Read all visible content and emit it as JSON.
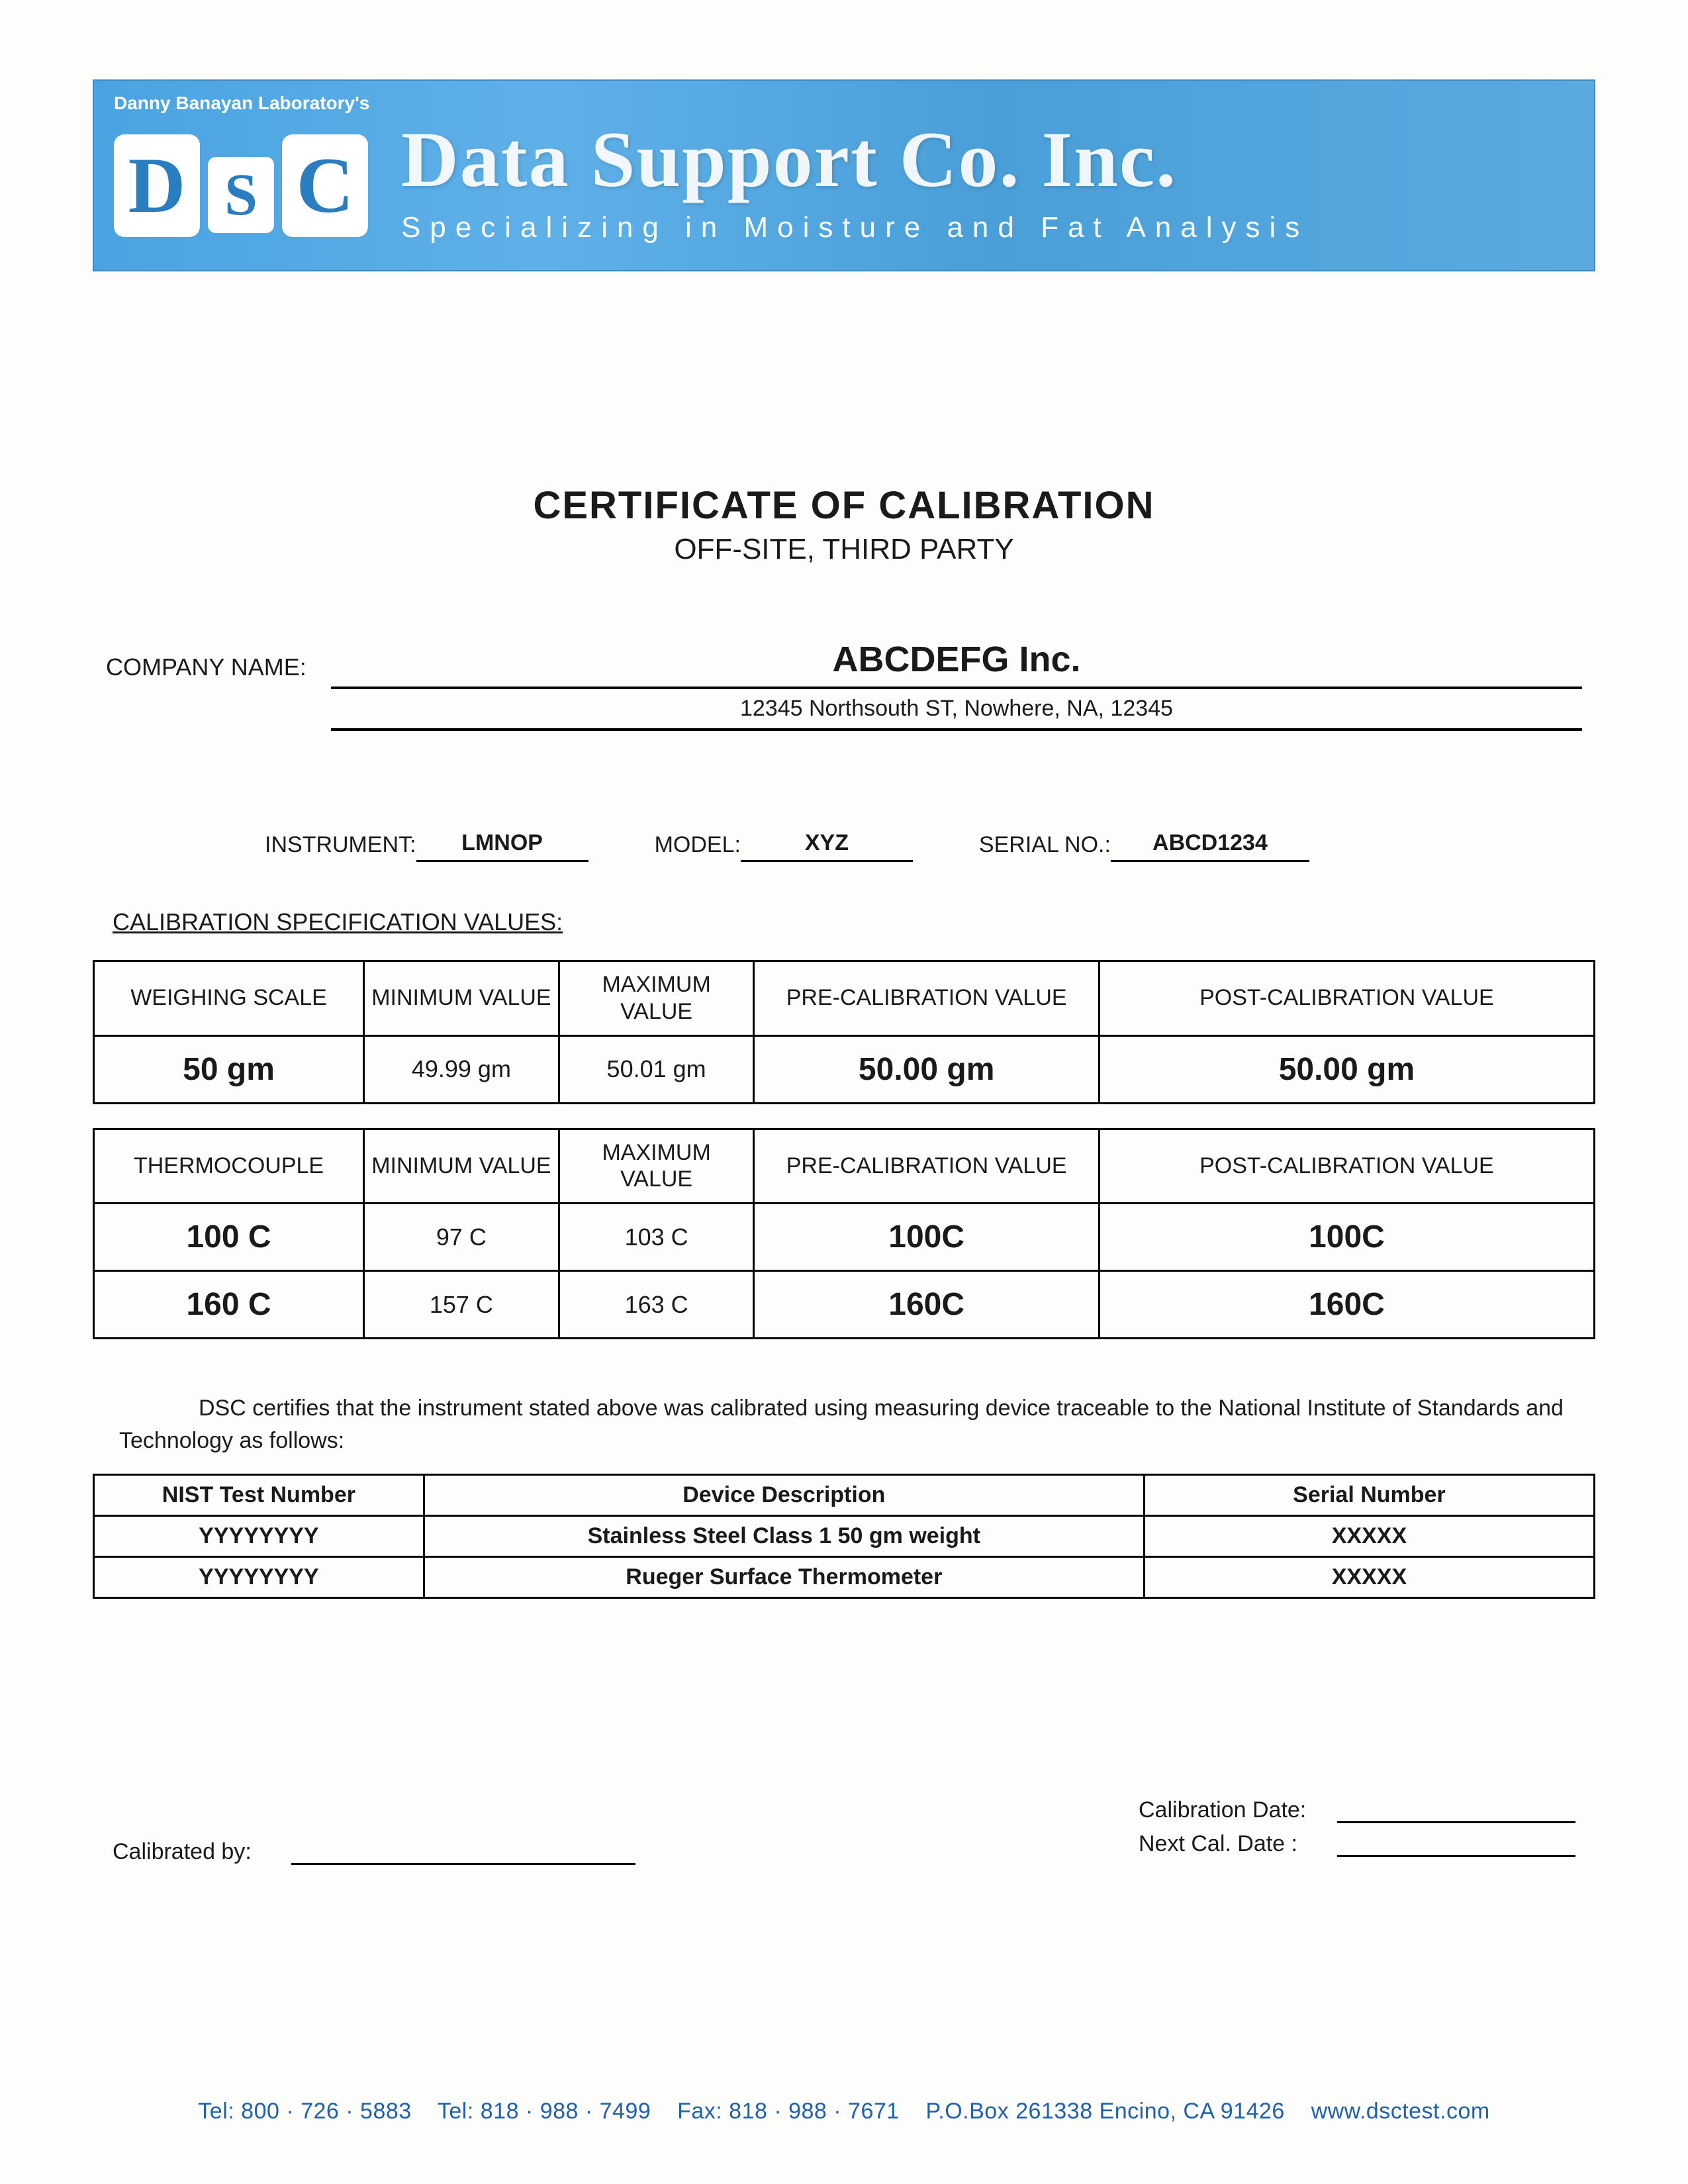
{
  "banner": {
    "lab_line": "Danny Banayan Laboratory's",
    "logo": {
      "d": "D",
      "s": "S",
      "c": "C"
    },
    "title": "Data Support Co. Inc.",
    "subtitle": "Specializing in Moisture and Fat Analysis"
  },
  "cert": {
    "title": "CERTIFICATE OF CALIBRATION",
    "subtitle": "OFF-SITE, THIRD PARTY"
  },
  "company": {
    "label": "COMPANY NAME:",
    "name": "ABCDEFG Inc.",
    "address": "12345 Northsouth ST, Nowhere, NA, 12345"
  },
  "instrument": {
    "inst_label": "INSTRUMENT:",
    "inst_value": "LMNOP",
    "model_label": "MODEL:",
    "model_value": "XYZ",
    "serial_label": "SERIAL NO.:",
    "serial_value": "ABCD1234"
  },
  "spec_label": "CALIBRATION SPECIFICATION VALUES:",
  "table_headers": {
    "min": "MINIMUM VALUE",
    "max": "MAXIMUM VALUE",
    "pre": "PRE-CALIBRATION VALUE",
    "post": "POST-CALIBRATION VALUE"
  },
  "weighing": {
    "label": "WEIGHING SCALE",
    "rows": [
      {
        "nominal": "50 gm",
        "min": "49.99 gm",
        "max": "50.01 gm",
        "pre": "50.00 gm",
        "post": "50.00 gm"
      }
    ]
  },
  "thermocouple": {
    "label": "THERMOCOUPLE",
    "rows": [
      {
        "nominal": "100 C",
        "min": "97 C",
        "max": "103 C",
        "pre": "100C",
        "post": "100C"
      },
      {
        "nominal": "160 C",
        "min": "157 C",
        "max": "163 C",
        "pre": "160C",
        "post": "160C"
      }
    ]
  },
  "statement": "DSC certifies that the instrument stated above was calibrated using measuring device traceable to the National Institute of Standards and Technology as follows:",
  "nist": {
    "headers": {
      "num": "NIST Test Number",
      "desc": "Device Description",
      "serial": "Serial Number"
    },
    "rows": [
      {
        "num": "YYYYYYYY",
        "desc": "Stainless Steel Class 1 50 gm weight",
        "serial": "XXXXX"
      },
      {
        "num": "YYYYYYYY",
        "desc": "Rueger Surface Thermometer",
        "serial": "XXXXX"
      }
    ]
  },
  "signatures": {
    "by_label": "Calibrated by:",
    "cal_date_label": "Calibration Date:",
    "next_date_label": "Next Cal. Date  :"
  },
  "footer": {
    "tel1_label": "Tel:",
    "tel1": "800 · 726 · 5883",
    "tel2_label": "Tel:",
    "tel2": "818 · 988 · 7499",
    "fax_label": "Fax:",
    "fax": "818 · 988 · 7671",
    "pobox": "P.O.Box 261338 Encino, CA 91426",
    "web": "www.dsctest.com"
  },
  "colors": {
    "banner_bg": "#4aa3e0",
    "banner_text": "#ffffff",
    "footer_text": "#2060b0",
    "border": "#000000",
    "page_bg": "#fdfdfb"
  }
}
